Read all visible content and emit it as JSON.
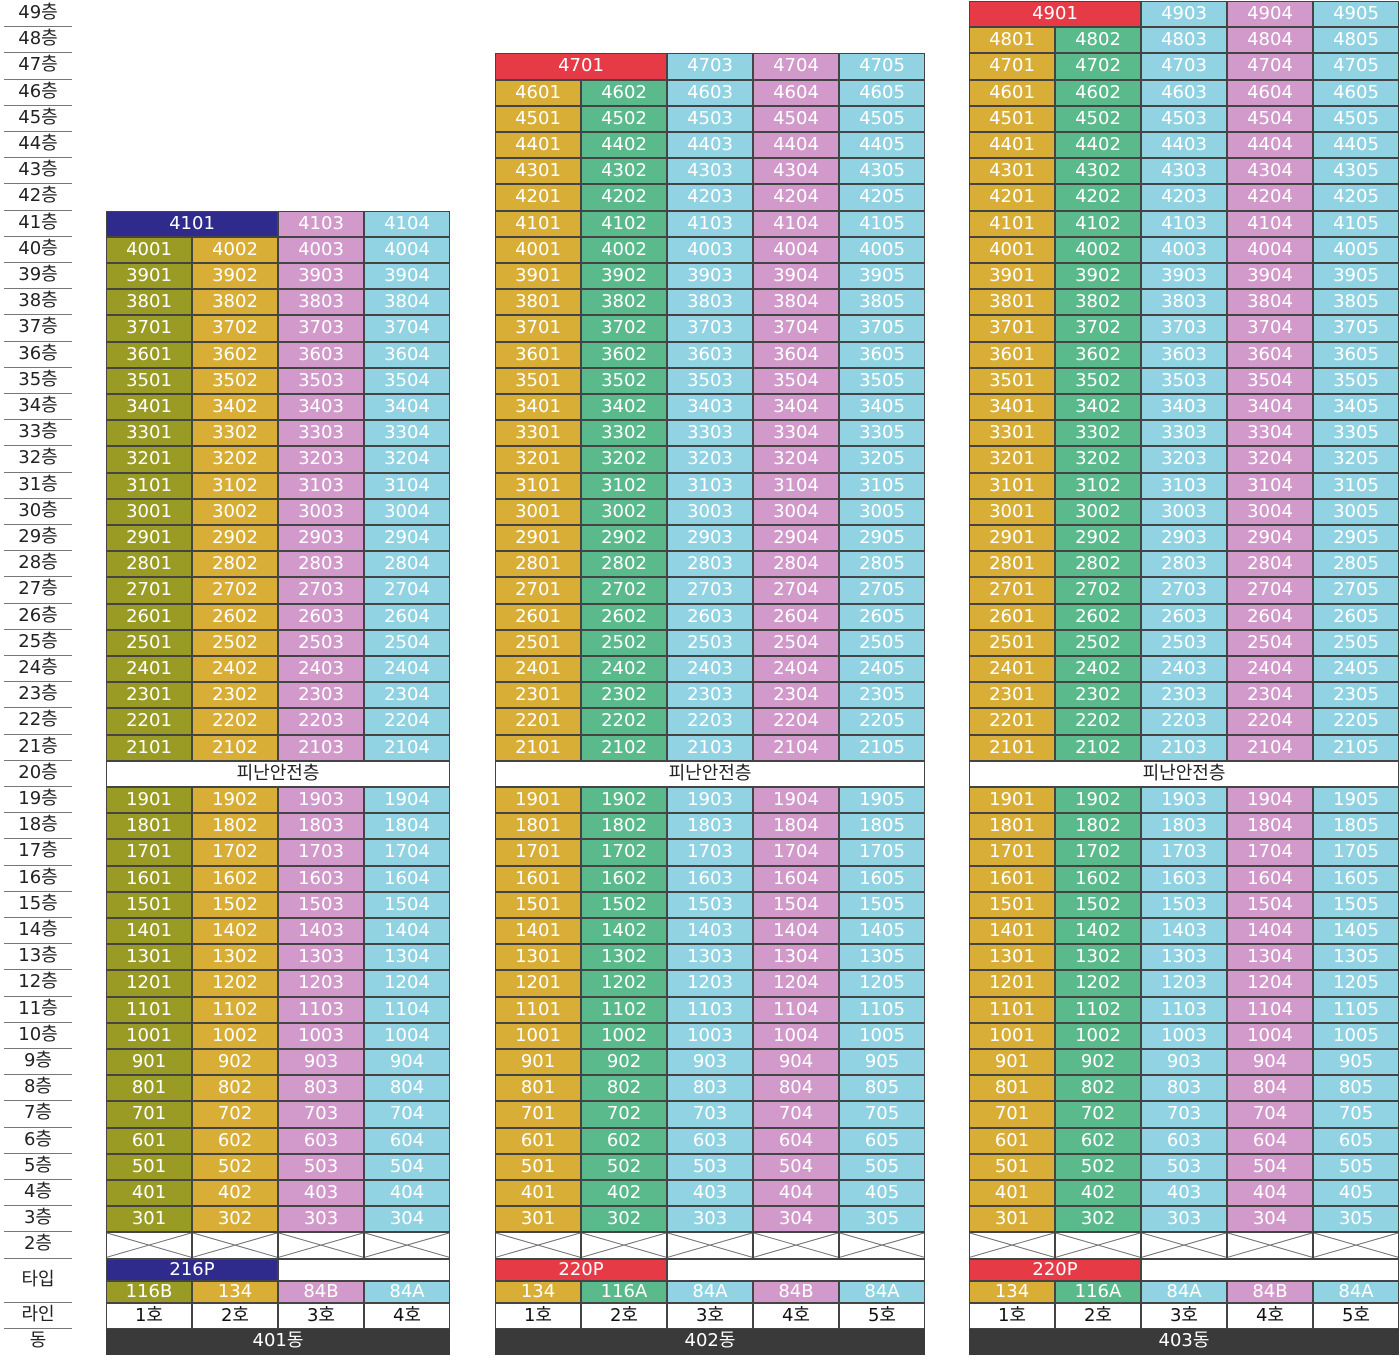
{
  "colors": {
    "olive": "#9a9b24",
    "gold": "#d9ae37",
    "green": "#5bba8c",
    "pink": "#d29acb",
    "sky": "#91d3e3",
    "red": "#e63a46",
    "navy": "#2e2b8c"
  },
  "floor_labels": [
    "49층",
    "48층",
    "47층",
    "46층",
    "45층",
    "44층",
    "43층",
    "42층",
    "41층",
    "40층",
    "39층",
    "38층",
    "37층",
    "36층",
    "35층",
    "34층",
    "33층",
    "32층",
    "31층",
    "30층",
    "29층",
    "28층",
    "27층",
    "26층",
    "25층",
    "24층",
    "23층",
    "22층",
    "21층",
    "20층",
    "19층",
    "18층",
    "17층",
    "16층",
    "15층",
    "14층",
    "13층",
    "12층",
    "11층",
    "10층",
    "9층",
    "8층",
    "7층",
    "6층",
    "5층",
    "4층",
    "3층",
    "2층"
  ],
  "row_labels": {
    "type": "타입",
    "line": "라인",
    "building": "동"
  },
  "refuge_floor_label": "피난안전층",
  "buildings": [
    {
      "name": "401동",
      "top_floor": 41,
      "line_colors": [
        "olive",
        "gold",
        "pink",
        "sky"
      ],
      "top_cells": [
        {
          "label": "4101",
          "span": 2,
          "color": "navy"
        },
        {
          "label": "4103",
          "span": 1,
          "color": "pink"
        },
        {
          "label": "4104",
          "span": 1,
          "color": "sky"
        }
      ],
      "penthouse_type": "216P",
      "penthouse_color": "navy",
      "types": [
        "116B",
        "134",
        "84B",
        "84A"
      ],
      "lines": [
        "1호",
        "2호",
        "3호",
        "4호"
      ]
    },
    {
      "name": "402동",
      "top_floor": 47,
      "line_colors": [
        "gold",
        "green",
        "sky",
        "pink",
        "sky"
      ],
      "top_cells": [
        {
          "label": "4701",
          "span": 2,
          "color": "red"
        },
        {
          "label": "4703",
          "span": 1,
          "color": "sky"
        },
        {
          "label": "4704",
          "span": 1,
          "color": "pink"
        },
        {
          "label": "4705",
          "span": 1,
          "color": "sky"
        }
      ],
      "penthouse_type": "220P",
      "penthouse_color": "red",
      "types": [
        "134",
        "116A",
        "84A",
        "84B",
        "84A"
      ],
      "lines": [
        "1호",
        "2호",
        "3호",
        "4호",
        "5호"
      ]
    },
    {
      "name": "403동",
      "top_floor": 49,
      "line_colors": [
        "gold",
        "green",
        "sky",
        "pink",
        "sky"
      ],
      "top_cells": [
        {
          "label": "4901",
          "span": 2,
          "color": "red"
        },
        {
          "label": "4903",
          "span": 1,
          "color": "sky"
        },
        {
          "label": "4904",
          "span": 1,
          "color": "pink"
        },
        {
          "label": "4905",
          "span": 1,
          "color": "sky"
        }
      ],
      "penthouse_type": "220P",
      "penthouse_color": "red",
      "types": [
        "134",
        "116A",
        "84A",
        "84B",
        "84A"
      ],
      "lines": [
        "1호",
        "2호",
        "3호",
        "4호",
        "5호"
      ]
    }
  ]
}
